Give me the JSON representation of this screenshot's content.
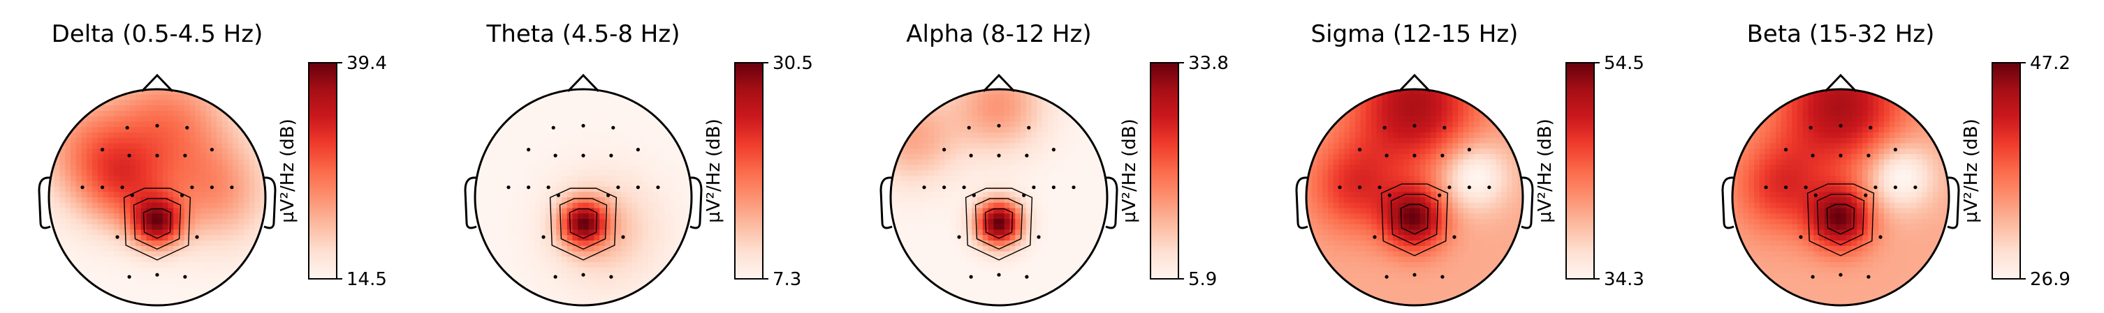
{
  "chart_data": [
    {
      "type": "heatmap",
      "title": "Delta (0.5-4.5 Hz)",
      "colorbar_label": "µV²/Hz (dB)",
      "vmin": 14.5,
      "vmax": 39.4,
      "colormap": "Reds",
      "blobs": [
        {
          "x": 0.0,
          "y": -0.24,
          "amp": 1.0,
          "sigma": 0.16
        },
        {
          "x": -0.3,
          "y": 0.1,
          "amp": 0.55,
          "sigma": 0.3
        },
        {
          "x": 0.1,
          "y": 0.7,
          "amp": 0.55,
          "sigma": 0.4
        },
        {
          "x": 0.55,
          "y": 0.05,
          "amp": 0.45,
          "sigma": 0.35
        },
        {
          "x": -0.65,
          "y": 0.45,
          "amp": 0.45,
          "sigma": 0.35
        }
      ],
      "base": 0.35
    },
    {
      "type": "heatmap",
      "title": "Theta (4.5-8 Hz)",
      "colorbar_label": "µV²/Hz (dB)",
      "vmin": 7.3,
      "vmax": 30.5,
      "colormap": "Reds",
      "blobs": [
        {
          "x": 0.0,
          "y": -0.24,
          "amp": 1.0,
          "sigma": 0.15
        },
        {
          "x": 0.2,
          "y": -0.3,
          "amp": 0.3,
          "sigma": 0.35
        }
      ],
      "base": 0.05
    },
    {
      "type": "heatmap",
      "title": "Alpha (8-12 Hz)",
      "colorbar_label": "µV²/Hz (dB)",
      "vmin": 5.9,
      "vmax": 33.8,
      "colormap": "Reds",
      "blobs": [
        {
          "x": 0.0,
          "y": -0.24,
          "amp": 1.0,
          "sigma": 0.15
        },
        {
          "x": 0.0,
          "y": 0.85,
          "amp": 0.35,
          "sigma": 0.3
        },
        {
          "x": -0.8,
          "y": 0.55,
          "amp": 0.3,
          "sigma": 0.3
        }
      ],
      "base": 0.08
    },
    {
      "type": "heatmap",
      "title": "Sigma (12-15 Hz)",
      "colorbar_label": "µV²/Hz (dB)",
      "vmin": 34.3,
      "vmax": 54.5,
      "colormap": "Reds",
      "blobs": [
        {
          "x": 0.0,
          "y": -0.2,
          "amp": 1.0,
          "sigma": 0.2
        },
        {
          "x": 0.0,
          "y": 0.85,
          "amp": 0.85,
          "sigma": 0.4
        },
        {
          "x": -0.55,
          "y": 0.1,
          "amp": 0.55,
          "sigma": 0.3
        },
        {
          "x": 0.55,
          "y": 0.2,
          "amp": -0.55,
          "sigma": 0.22
        }
      ],
      "base": 0.55
    },
    {
      "type": "heatmap",
      "title": "Beta (15-32 Hz)",
      "colorbar_label": "µV²/Hz (dB)",
      "vmin": 26.9,
      "vmax": 47.2,
      "colormap": "Reds",
      "blobs": [
        {
          "x": 0.0,
          "y": -0.2,
          "amp": 1.0,
          "sigma": 0.2
        },
        {
          "x": 0.0,
          "y": 0.85,
          "amp": 0.85,
          "sigma": 0.4
        },
        {
          "x": -0.55,
          "y": 0.1,
          "amp": 0.55,
          "sigma": 0.3
        },
        {
          "x": 0.55,
          "y": 0.2,
          "amp": -0.55,
          "sigma": 0.22
        }
      ],
      "base": 0.55
    }
  ],
  "sensors": [
    [
      -0.3,
      0.7
    ],
    [
      0.0,
      0.72
    ],
    [
      0.3,
      0.7
    ],
    [
      -0.55,
      0.48
    ],
    [
      -0.28,
      0.42
    ],
    [
      0.0,
      0.42
    ],
    [
      0.28,
      0.42
    ],
    [
      0.55,
      0.48
    ],
    [
      -0.75,
      0.1
    ],
    [
      -0.55,
      0.1
    ],
    [
      -0.35,
      0.1
    ],
    [
      0.35,
      0.1
    ],
    [
      0.55,
      0.1
    ],
    [
      0.75,
      0.1
    ],
    [
      -0.25,
      0.02
    ],
    [
      0.25,
      0.02
    ],
    [
      -0.4,
      -0.4
    ],
    [
      0.4,
      -0.4
    ],
    [
      -0.28,
      -0.8
    ],
    [
      0.0,
      -0.78
    ],
    [
      0.28,
      -0.8
    ]
  ]
}
